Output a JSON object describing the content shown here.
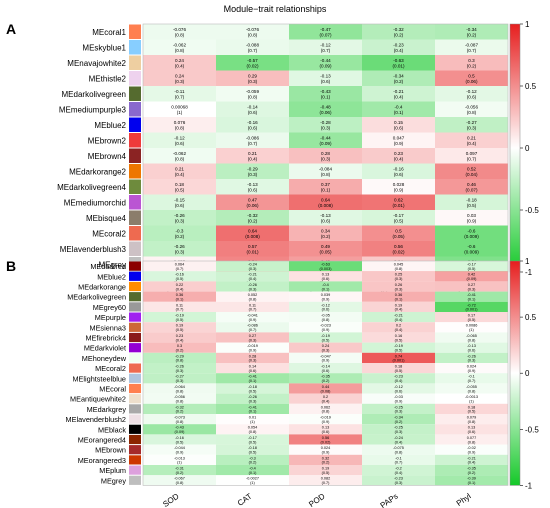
{
  "figure": {
    "title": "Module−trait relationships"
  },
  "chart_data": [
    {
      "type": "heatmap",
      "panel_label": "A",
      "columns": [
        "SOD",
        "CAT",
        "POD",
        "PAPs",
        "Phyl"
      ],
      "legend_ticks": [
        "1",
        "0.5",
        "0",
        "-0.5",
        "-1"
      ],
      "legend_range": [
        -1,
        1
      ],
      "rows": [
        {
          "name": "MEcoral1",
          "color": "#ff7f50",
          "r": [
            -0.076,
            -0.076,
            -0.47,
            -0.32,
            -0.34
          ],
          "p": [
            "(0.8)",
            "(0.8)",
            "(0.07)",
            "(0.2)",
            "(0.2)"
          ]
        },
        {
          "name": "MEskyblue1",
          "color": "#87ceff",
          "r": [
            -0.062,
            -0.088,
            -0.12,
            -0.23,
            -0.087
          ],
          "p": [
            "(0.8)",
            "(0.7)",
            "(0.7)",
            "(0.4)",
            "(0.7)"
          ]
        },
        {
          "name": "MEnavajowhite2",
          "color": "#eecfa1",
          "r": [
            0.24,
            -0.57,
            -0.44,
            -0.63,
            0.3
          ],
          "p": [
            "(0.4)",
            "(0.02)",
            "(0.09)",
            "(0.01)",
            "(0.2)"
          ]
        },
        {
          "name": "MEthistle2",
          "color": "#eed2ee",
          "r": [
            0.24,
            0.29,
            -0.13,
            -0.34,
            0.5
          ],
          "p": [
            "(0.3)",
            "(0.3)",
            "(0.6)",
            "(0.2)",
            "(0.06)"
          ]
        },
        {
          "name": "MEdarkolivegreen",
          "color": "#556b2f",
          "r": [
            -0.11,
            -0.059,
            -0.43,
            -0.21,
            -0.12
          ],
          "p": [
            "(0.7)",
            "(0.8)",
            "(0.1)",
            "(0.4)",
            "(0.6)"
          ]
        },
        {
          "name": "MEmediumpurple3",
          "color": "#8968cd",
          "r": [
            0.00068,
            -0.14,
            -0.48,
            -0.4,
            -0.056
          ],
          "p": [
            "(1)",
            "(0.6)",
            "(0.06)",
            "(0.1)",
            "(0.8)"
          ]
        },
        {
          "name": "MEblue2",
          "color": "#0000ee",
          "r": [
            0.076,
            -0.16,
            -0.28,
            0.15,
            -0.27
          ],
          "p": [
            "(0.8)",
            "(0.6)",
            "(0.3)",
            "(0.6)",
            "(0.3)"
          ]
        },
        {
          "name": "MEbrown2",
          "color": "#ee3b3b",
          "r": [
            -0.12,
            -0.086,
            -0.44,
            0.047,
            0.21
          ],
          "p": [
            "(0.6)",
            "(0.7)",
            "(0.09)",
            "(0.9)",
            "(0.4)"
          ]
        },
        {
          "name": "MEbrown4",
          "color": "#8b2323",
          "r": [
            -0.062,
            0.21,
            0.28,
            0.23,
            0.097
          ],
          "p": [
            "(0.8)",
            "(0.4)",
            "(0.3)",
            "(0.4)",
            "(0.7)"
          ]
        },
        {
          "name": "MEdarkorange2",
          "color": "#ee7600",
          "r": [
            0.21,
            -0.29,
            -0.084,
            -0.16,
            0.52
          ],
          "p": [
            "(0.4)",
            "(0.3)",
            "(0.8)",
            "(0.6)",
            "(0.04)"
          ]
        },
        {
          "name": "MEdarkolivegreen4",
          "color": "#6e8b3d",
          "r": [
            0.18,
            -0.13,
            0.37,
            0.028,
            0.46
          ],
          "p": [
            "(0.5)",
            "(0.6)",
            "(0.1)",
            "(0.9)",
            "(0.07)"
          ]
        },
        {
          "name": "MEmediumorchid",
          "color": "#ba55d3",
          "r": [
            -0.15,
            0.47,
            0.64,
            0.62,
            -0.18
          ],
          "p": [
            "(0.6)",
            "(0.06)",
            "(0.008)",
            "(0.01)",
            "(0.5)"
          ]
        },
        {
          "name": "MEbisque4",
          "color": "#8b7d6b",
          "r": [
            -0.26,
            -0.32,
            -0.13,
            -0.17,
            0.03
          ],
          "p": [
            "(0.3)",
            "(0.2)",
            "(0.6)",
            "(0.5)",
            "(0.9)"
          ]
        },
        {
          "name": "MEcoral2",
          "color": "#ee6a50",
          "r": [
            -0.3,
            0.64,
            0.34,
            0.5,
            -0.6
          ],
          "p": [
            "(0.2)",
            "(0.008)",
            "(0.2)",
            "(0.05)",
            "(0.009)"
          ]
        },
        {
          "name": "MElavenderblush3",
          "color": "#cdc1c5",
          "r": [
            -0.26,
            0.57,
            0.49,
            0.56,
            -0.6
          ],
          "p": [
            "(0.3)",
            "(0.01)",
            "(0.05)",
            "(0.02)",
            "(0.009)"
          ]
        },
        {
          "name": "MEgrey",
          "color": "#bebebe",
          "r": [
            0.055,
            0.54,
            0.43,
            0.24,
            -0.54
          ],
          "p": [
            "(0.8)",
            "(0.02)",
            "(0.07)",
            "(0.4)",
            "(0.03)"
          ]
        }
      ]
    },
    {
      "type": "heatmap",
      "panel_label": "B",
      "columns": [
        "SOD",
        "CAT",
        "POD",
        "PAPs",
        "Phyl"
      ],
      "legend_ticks": [
        "1",
        "0.5",
        "0",
        "-0.5",
        "-1"
      ],
      "legend_range": [
        -1,
        1
      ],
      "rows": [
        {
          "name": "MEdarkred",
          "color": "#8b0000",
          "r": [
            0.064,
            -0.24,
            -0.63,
            0.045,
            -0.17
          ],
          "p": [
            "(0.7)",
            "(0.3)",
            "(0.003)",
            "(0.8)",
            "(0.5)"
          ]
        },
        {
          "name": "MEblue2",
          "color": "#0000ee",
          "r": [
            -0.16,
            -0.21,
            0.13,
            0.25,
            0.42
          ],
          "p": [
            "(0.5)",
            "(0.4)",
            "(0.6)",
            "(0.3)",
            "(0.09)"
          ]
        },
        {
          "name": "MEdarkorange",
          "color": "#ff8c00",
          "r": [
            0.22,
            -0.26,
            -0.4,
            0.26,
            0.27
          ],
          "p": [
            "(0.4)",
            "(0.3)",
            "(0.1)",
            "(0.3)",
            "(0.3)"
          ]
        },
        {
          "name": "MEdarkolivegreen",
          "color": "#556b2f",
          "r": [
            0.36,
            0.052,
            0.039,
            0.36,
            -0.41
          ],
          "p": [
            "(0.1)",
            "(0.8)",
            "(0.9)",
            "(0.1)",
            "(0.1)"
          ]
        },
        {
          "name": "MEgrey60",
          "color": "#999999",
          "r": [
            0.11,
            0.11,
            -0.12,
            0.19,
            -0.72
          ],
          "p": [
            "(0.7)",
            "(0.7)",
            "(0.6)",
            "(0.4)",
            "(0.001)"
          ]
        },
        {
          "name": "MEpurple",
          "color": "#a020f0",
          "r": [
            -0.19,
            -0.041,
            -0.05,
            -0.21,
            0.17
          ],
          "p": [
            "(0.5)",
            "(0.9)",
            "(0.8)",
            "(0.4)",
            "(0.5)"
          ]
        },
        {
          "name": "MEsienna3",
          "color": "#cd6839",
          "r": [
            0.19,
            -0.086,
            -0.023,
            0.2,
            0.0086
          ],
          "p": [
            "(0.5)",
            "(0.7)",
            "(0.9)",
            "(0.4)",
            "(1)"
          ]
        },
        {
          "name": "MEfirebrick4",
          "color": "#8b1a1a",
          "r": [
            0.23,
            0.27,
            -0.19,
            0.16,
            -0.065
          ],
          "p": [
            "(0.4)",
            "(0.3)",
            "(0.5)",
            "(0.5)",
            "(0.8)"
          ]
        },
        {
          "name": "MEdarkviolet",
          "color": "#9400d3",
          "r": [
            0.3,
            -0.019,
            0.24,
            -0.19,
            -0.13
          ],
          "p": [
            "(0.2)",
            "(0.9)",
            "(0.3)",
            "(0.5)",
            "(0.6)"
          ]
        },
        {
          "name": "MEhoneydew",
          "color": "#f0fff0",
          "r": [
            -0.29,
            0.28,
            -0.047,
            0.74,
            -0.26
          ],
          "p": [
            "(0.8)",
            "(0.3)",
            "(0.9)",
            "(0.001)",
            "(0.3)"
          ]
        },
        {
          "name": "MEcoral2",
          "color": "#ee6a50",
          "r": [
            -0.26,
            0.14,
            -0.14,
            0.18,
            0.024
          ],
          "p": [
            "(0.3)",
            "(0.6)",
            "(0.6)",
            "(0.5)",
            "(0.9)"
          ]
        },
        {
          "name": "MElightsteelblue",
          "color": "#b0c4de",
          "r": [
            -0.27,
            -0.41,
            -0.35,
            -0.23,
            -0.1
          ],
          "p": [
            "(0.3)",
            "(0.1)",
            "(0.2)",
            "(0.4)",
            "(0.7)"
          ]
        },
        {
          "name": "MEcoral",
          "color": "#ff7f50",
          "r": [
            -0.064,
            -0.18,
            0.44,
            -0.12,
            -0.055
          ],
          "p": [
            "(0.8)",
            "(0.5)",
            "(0.08)",
            "(0.6)",
            "(0.8)"
          ]
        },
        {
          "name": "MEantiquewhite2",
          "color": "#eedfcc",
          "r": [
            -0.056,
            -0.26,
            0.2,
            -0.03,
            -0.0013
          ],
          "p": [
            "(0.8)",
            "(0.3)",
            "(0.4)",
            "(0.9)",
            "(1)"
          ]
        },
        {
          "name": "MEdarkgrey",
          "color": "#a9a9a9",
          "r": [
            -0.32,
            -0.41,
            0.062,
            -0.25,
            0.18
          ],
          "p": [
            "(0.2)",
            "(0.1)",
            "(0.8)",
            "(0.3)",
            "(0.5)"
          ]
        },
        {
          "name": "MElavenderblush2",
          "color": "#eee0e5",
          "r": [
            -0.073,
            0.01,
            -0.019,
            -0.34,
            0.079
          ],
          "p": [
            "(0.8)",
            "(1)",
            "(0.9)",
            "(0.2)",
            "(0.8)"
          ]
        },
        {
          "name": "MEblack",
          "color": "#000000",
          "r": [
            -0.43,
            0.054,
            0.13,
            -0.25,
            0.13
          ],
          "p": [
            "(0.09)",
            "(0.8)",
            "(0.6)",
            "(0.3)",
            "(0.6)"
          ]
        },
        {
          "name": "MEorangered4",
          "color": "#8b2500",
          "r": [
            -0.16,
            -0.17,
            0.56,
            -0.24,
            0.077
          ],
          "p": [
            "(0.5)",
            "(0.5)",
            "(0.02)",
            "(0.4)",
            "(0.8)"
          ]
        },
        {
          "name": "MEbrown",
          "color": "#a52a2a",
          "r": [
            -0.044,
            -0.18,
            0.024,
            -0.075,
            -0.02
          ],
          "p": [
            "(0.9)",
            "(0.5)",
            "(0.9)",
            "(0.8)",
            "(0.9)"
          ]
        },
        {
          "name": "MEorangered3",
          "color": "#cd3700",
          "r": [
            -0.013,
            -0.3,
            0.32,
            -0.1,
            -0.21
          ],
          "p": [
            "(1)",
            "(0.2)",
            "(0.2)",
            "(0.7)",
            "(0.4)"
          ]
        },
        {
          "name": "MEplum",
          "color": "#dda0dd",
          "r": [
            -0.31,
            -0.4,
            0.19,
            -0.2,
            -0.35
          ],
          "p": [
            "(0.2)",
            "(0.1)",
            "(0.5)",
            "(0.4)",
            "(0.2)"
          ]
        },
        {
          "name": "MEgrey",
          "color": "#bebebe",
          "r": [
            -0.067,
            -0.0027,
            0.082,
            -0.23,
            -0.39
          ],
          "p": [
            "(0.8)",
            "(1)",
            "(0.7)",
            "(0.3)",
            "(0.1)"
          ]
        }
      ]
    }
  ]
}
